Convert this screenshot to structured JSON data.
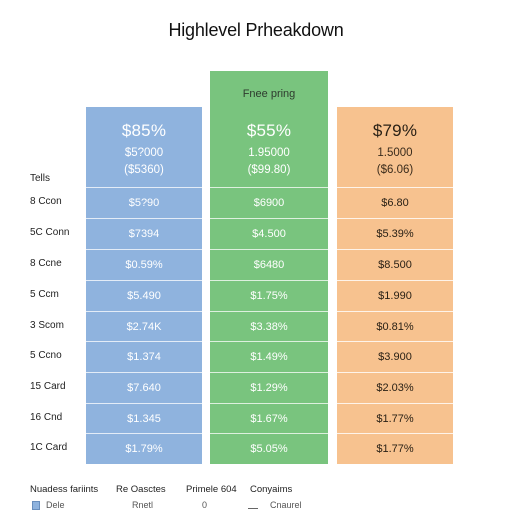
{
  "title": "Highlevel Prheakdown",
  "row_header": "Tells",
  "row_labels": [
    "8 Ccon",
    "5C Conn",
    "8 Ccne",
    "5 Ccm",
    "3 Scom",
    "5 Ccno",
    "15 Card",
    "16 Cnd",
    "1C Card"
  ],
  "plans": [
    {
      "label": "",
      "price": "$85%",
      "sub1": "$5?000",
      "sub2": "($5360)",
      "cells": [
        "$5?90",
        "$7394",
        "$0.59%",
        "$5.490",
        "$2.74K",
        "$1.374",
        "$7.640",
        "$1.345",
        "$1.79%"
      ]
    },
    {
      "label": "Fnee pring",
      "price": "$55%",
      "sub1": "1.95000",
      "sub2": "($99.80)",
      "cells": [
        "$6900",
        "$4.500",
        "$6480",
        "$1.75%",
        "$3.38%",
        "$1.49%",
        "$1.29%",
        "$1.67%",
        "$5.05%"
      ]
    },
    {
      "label": "",
      "price": "$79%",
      "sub1": "1.5000",
      "sub2": "($6.06)",
      "cells": [
        "$6.80",
        "$5.39%",
        "$8.500",
        "$1.990",
        "$0.81%",
        "$3.900",
        "$2.03%",
        "$1.77%",
        "$1.77%"
      ]
    }
  ],
  "footer": {
    "items": [
      "Nuadess fariints",
      "Re Oasctes",
      "Primele 604",
      "Conyaims"
    ],
    "sub": [
      "Dele",
      "Rnetl",
      "0",
      "Cnaurel"
    ]
  },
  "colors": {
    "blue": "#8fb3de",
    "green": "#79c47e",
    "orange": "#f7c28f"
  }
}
